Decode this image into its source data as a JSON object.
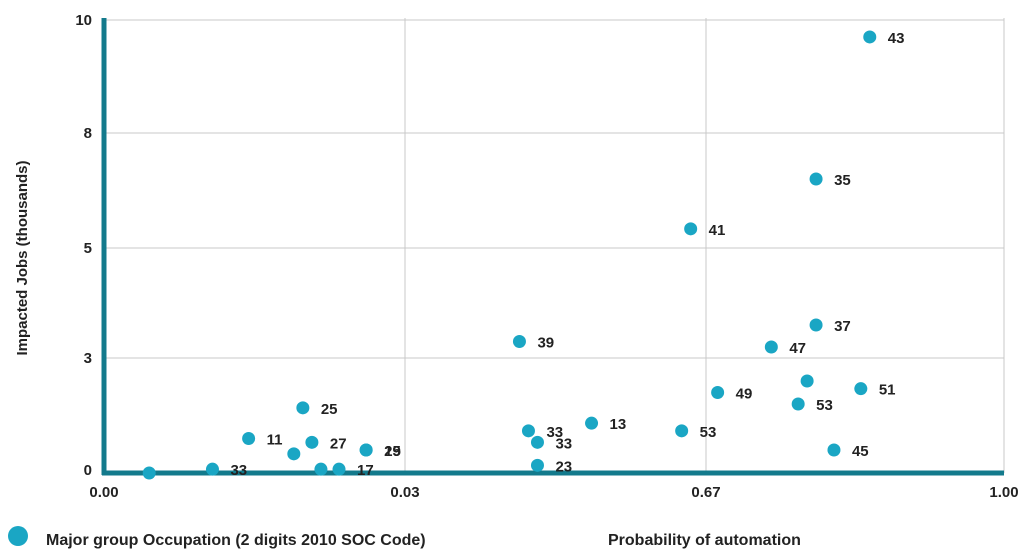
{
  "chart_data": {
    "type": "scatter",
    "title": "",
    "ylabel": "Impacted Jobs (thousands)",
    "xlabel": "Probability of automation",
    "legend_label": "Major group Occupation (2 digits 2010 SOC Code)",
    "grid": true,
    "colors": {
      "point": "#1aa6c4",
      "axis": "#137a8c",
      "grid": "#c8c8c8"
    },
    "x_ticks": [
      "0.00",
      "0.03",
      "0.67",
      "1.00"
    ],
    "y_ticks": [
      "0",
      "3",
      "5",
      "8",
      "10"
    ],
    "points": [
      {
        "x": 0.05,
        "y": 0.0,
        "label": ""
      },
      {
        "x": 0.12,
        "y": 0.1,
        "label": "33"
      },
      {
        "x": 0.16,
        "y": 0.9,
        "label": "11"
      },
      {
        "x": 0.22,
        "y": 1.7,
        "label": "25"
      },
      {
        "x": 0.21,
        "y": 0.5,
        "label": ""
      },
      {
        "x": 0.23,
        "y": 0.8,
        "label": "27"
      },
      {
        "x": 0.24,
        "y": 0.1,
        "label": ""
      },
      {
        "x": 0.26,
        "y": 0.1,
        "label": "17"
      },
      {
        "x": 0.29,
        "y": 0.6,
        "label": "15"
      },
      {
        "x": 0.29,
        "y": 0.6,
        "label": "29"
      },
      {
        "x": 0.46,
        "y": 3.3,
        "label": "39"
      },
      {
        "x": 0.47,
        "y": 1.1,
        "label": "33"
      },
      {
        "x": 0.48,
        "y": 0.8,
        "label": "33"
      },
      {
        "x": 0.48,
        "y": 0.2,
        "label": "23"
      },
      {
        "x": 0.54,
        "y": 1.3,
        "label": "13"
      },
      {
        "x": 0.64,
        "y": 1.1,
        "label": "53"
      },
      {
        "x": 0.65,
        "y": 5.5,
        "label": "41"
      },
      {
        "x": 0.68,
        "y": 2.1,
        "label": "49"
      },
      {
        "x": 0.74,
        "y": 3.2,
        "label": "47"
      },
      {
        "x": 0.77,
        "y": 1.8,
        "label": "53"
      },
      {
        "x": 0.78,
        "y": 2.4,
        "label": ""
      },
      {
        "x": 0.79,
        "y": 3.6,
        "label": "37"
      },
      {
        "x": 0.79,
        "y": 6.8,
        "label": "35"
      },
      {
        "x": 0.81,
        "y": 0.6,
        "label": "45"
      },
      {
        "x": 0.84,
        "y": 2.2,
        "label": "51"
      },
      {
        "x": 0.85,
        "y": 9.7,
        "label": "43"
      }
    ]
  }
}
